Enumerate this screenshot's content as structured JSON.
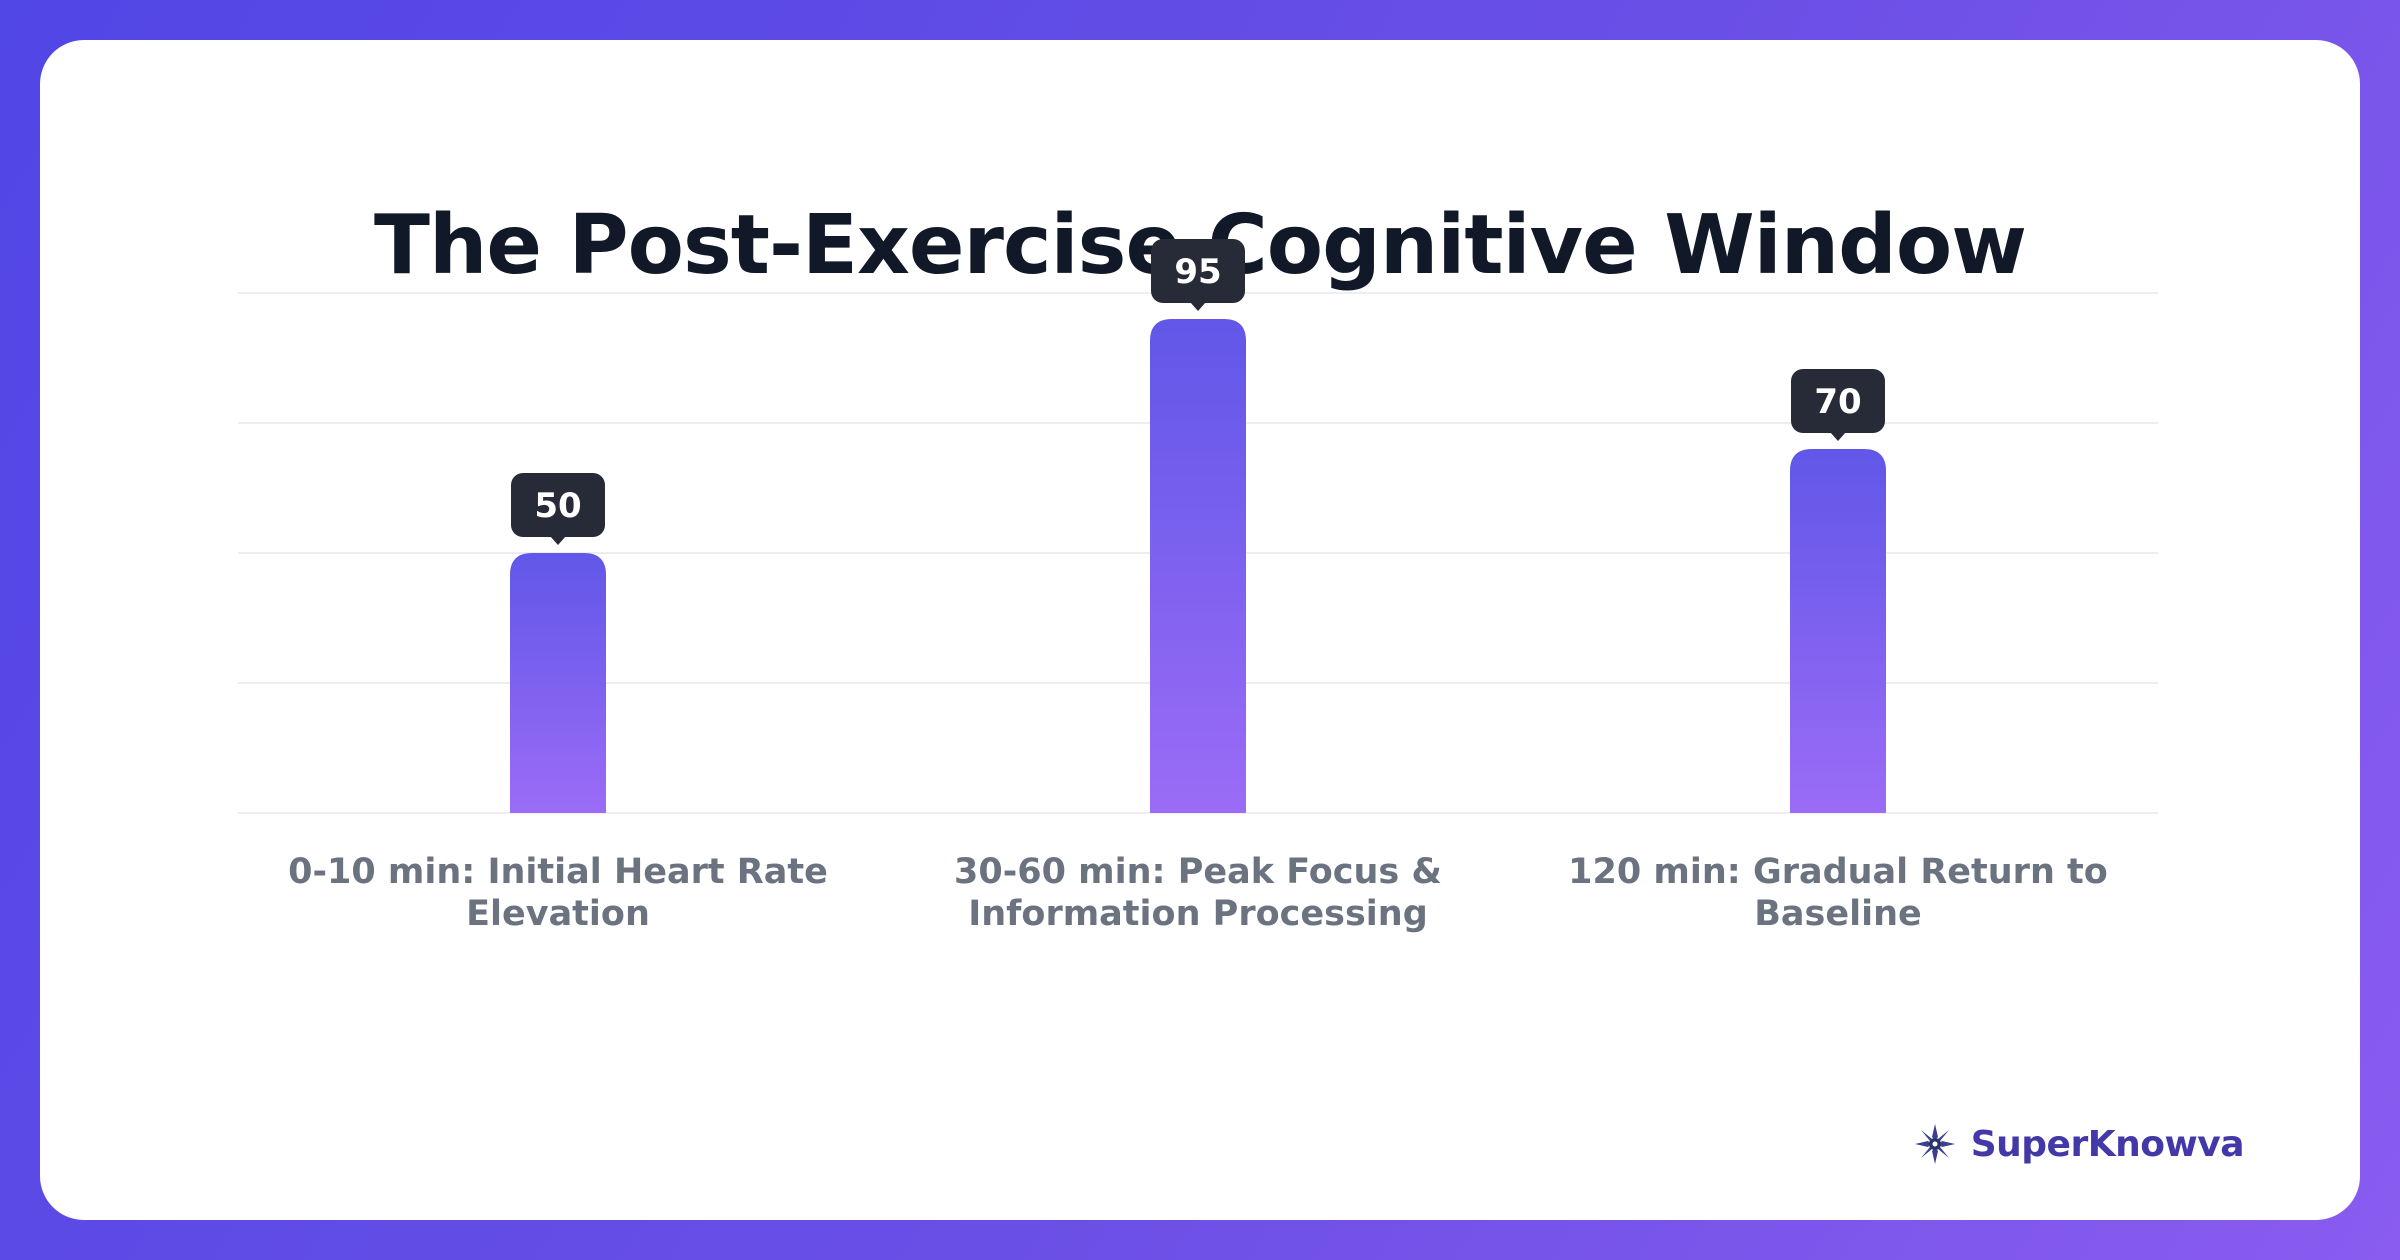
{
  "chart_data": {
    "type": "bar",
    "title": "The Post-Exercise Cognitive Window",
    "categories": [
      "0-10 min: Initial Heart Rate Elevation",
      "30-60 min: Peak Focus & Information Processing",
      "120 min: Gradual Return to Baseline"
    ],
    "category_lines": [
      [
        "0-10 min: Initial Heart Rate",
        "Elevation"
      ],
      [
        "30-60 min: Peak Focus &",
        "Information Processing"
      ],
      [
        "120 min: Gradual Return to",
        "Baseline"
      ]
    ],
    "values": [
      50,
      95,
      70
    ],
    "value_labels": [
      "50",
      "95",
      "70"
    ],
    "ylim": [
      0,
      100
    ],
    "grid": true,
    "xlabel": "",
    "ylabel": ""
  },
  "colors": {
    "bar_top": "#6157e8",
    "bar_bottom": "#9b6cf6",
    "label_bg": "#272b37"
  },
  "brand": {
    "name": "SuperKnowva",
    "icon": "starburst-logo-icon"
  }
}
